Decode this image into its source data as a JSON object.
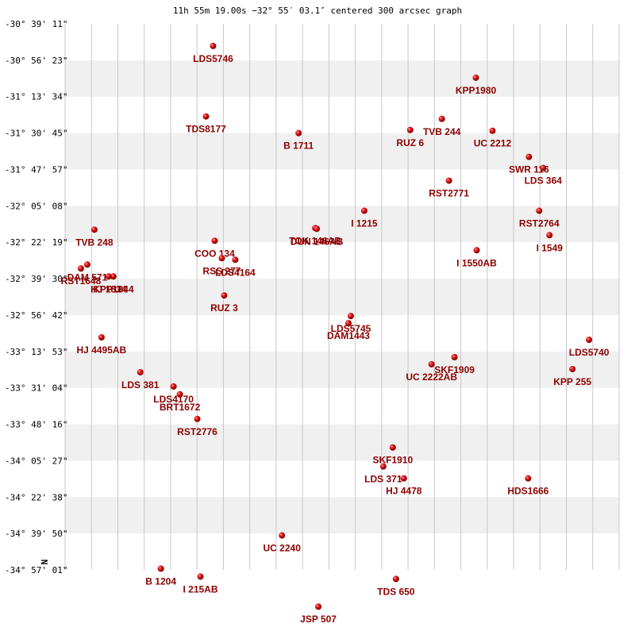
{
  "chart_data": {
    "type": "scatter",
    "title": "11h 55m 19.00s −32° 55′ 03.1″ centered 300 arcsec graph",
    "ylabel": "N",
    "x_range": [
      0,
      700
    ],
    "y_range_arcsec": [
      0,
      5147
    ],
    "y_ticks": [
      "-30° 39' 11\"",
      "-30° 56' 23\"",
      "-31° 13' 34\"",
      "-31° 30' 45\"",
      "-31° 47' 57\"",
      "-32° 05' 08\"",
      "-32° 22' 19\"",
      "-32° 39' 30\"",
      "-32° 56' 42\"",
      "-33° 13' 53\"",
      "-33° 31' 04\"",
      "-33° 48' 16\"",
      "-34° 05' 27\"",
      "-34° 22' 38\"",
      "-34° 39' 50\"",
      "-34° 57' 01\""
    ],
    "points": [
      {
        "label": "LDS5746",
        "x": 187,
        "y": 209
      },
      {
        "label": "KPP1980",
        "x": 519,
        "y": 508
      },
      {
        "label": "TDS8177",
        "x": 178,
        "y": 873
      },
      {
        "label": "B  1711",
        "x": 295,
        "y": 1030
      },
      {
        "label": "TVB 244",
        "x": 476,
        "y": 896
      },
      {
        "label": "RUZ   6",
        "x": 436,
        "y": 1001
      },
      {
        "label": "UC 2212",
        "x": 540,
        "y": 1008
      },
      {
        "label": "SWR 116",
        "x": 586,
        "y": 1254
      },
      {
        "label": "LDS 364",
        "x": 604,
        "y": 1359
      },
      {
        "label": "RST2771",
        "x": 485,
        "y": 1478
      },
      {
        "label": "I  1215",
        "x": 378,
        "y": 1762
      },
      {
        "label": "RST2764",
        "x": 599,
        "y": 1762
      },
      {
        "label": "TVB 248",
        "x": 37,
        "y": 1940
      },
      {
        "label": "COO 134",
        "x": 189,
        "y": 2045
      },
      {
        "label": "TOK 146AB",
        "x": 316,
        "y": 1925
      },
      {
        "label": "DUN 146AB",
        "x": 318,
        "y": 1932
      },
      {
        "label": "I  1549",
        "x": 612,
        "y": 1992
      },
      {
        "label": "I  1550AB",
        "x": 520,
        "y": 2134
      },
      {
        "label": "RSS 277",
        "x": 198,
        "y": 2209
      },
      {
        "label": "LDS4164",
        "x": 215,
        "y": 2224
      },
      {
        "label": "DAM 571",
        "x": 28,
        "y": 2269
      },
      {
        "label": "RST1648",
        "x": 20,
        "y": 2306
      },
      {
        "label": "KPP1844",
        "x": 61,
        "y": 2381
      },
      {
        "label": "HJ 1834",
        "x": 55,
        "y": 2381
      },
      {
        "label": "RUZ   3",
        "x": 201,
        "y": 2560
      },
      {
        "label": "HJ 4495AB",
        "x": 46,
        "y": 2955
      },
      {
        "label": "LDS5745",
        "x": 361,
        "y": 2754
      },
      {
        "label": "DAM1443",
        "x": 358,
        "y": 2821
      },
      {
        "label": "LDS5740",
        "x": 662,
        "y": 2978
      },
      {
        "label": "SKF1909",
        "x": 492,
        "y": 3142
      },
      {
        "label": "UC 2222AB",
        "x": 463,
        "y": 3209
      },
      {
        "label": "KPP 255",
        "x": 641,
        "y": 3254
      },
      {
        "label": "LDS 381",
        "x": 95,
        "y": 3284
      },
      {
        "label": "LDS4170",
        "x": 137,
        "y": 3418
      },
      {
        "label": "BRT1672",
        "x": 145,
        "y": 3492
      },
      {
        "label": "RST2776",
        "x": 167,
        "y": 3724
      },
      {
        "label": "SKF1910",
        "x": 414,
        "y": 3993
      },
      {
        "label": "LDS 371",
        "x": 402,
        "y": 4172
      },
      {
        "label": "HJ 4478",
        "x": 428,
        "y": 4284
      },
      {
        "label": "HDS1666",
        "x": 585,
        "y": 4284
      },
      {
        "label": "UC 2240",
        "x": 274,
        "y": 4822
      },
      {
        "label": "B  1204",
        "x": 121,
        "y": 5135
      },
      {
        "label": "I   215AB",
        "x": 171,
        "y": 5210
      },
      {
        "label": "TDS 650",
        "x": 418,
        "y": 5232
      },
      {
        "label": "JSP 507",
        "x": 320,
        "y": 5493
      }
    ]
  }
}
